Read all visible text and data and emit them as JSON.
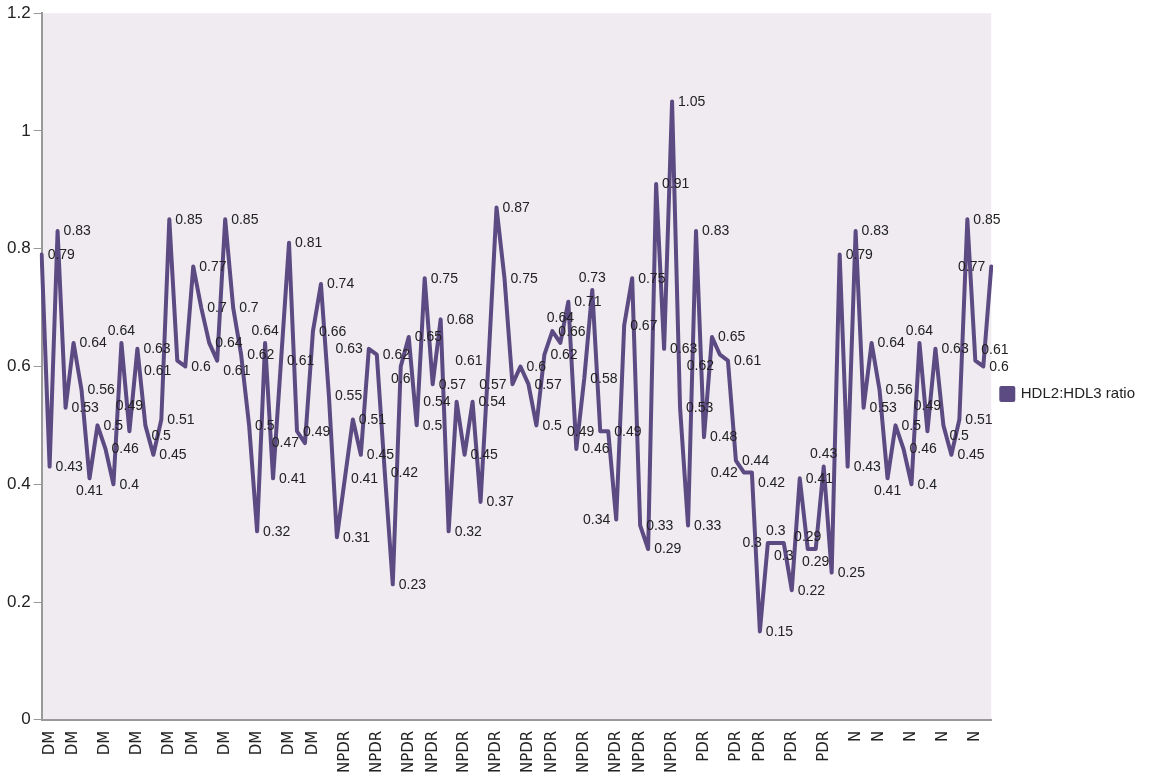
{
  "chart_data": {
    "type": "line",
    "categories": [
      null,
      "DM",
      null,
      null,
      "DM",
      null,
      null,
      null,
      "DM",
      null,
      null,
      null,
      "DM",
      null,
      null,
      null,
      "DM",
      null,
      null,
      "DM",
      null,
      null,
      null,
      "DM",
      null,
      null,
      null,
      "DM",
      null,
      null,
      null,
      "DM",
      null,
      null,
      "DM",
      null,
      null,
      null,
      "NPDR",
      null,
      null,
      null,
      "NPDR",
      null,
      null,
      null,
      "NPDR",
      null,
      null,
      "NPDR",
      null,
      null,
      null,
      "NPDR",
      null,
      null,
      null,
      "NPDR",
      null,
      null,
      null,
      "NPDR",
      null,
      null,
      "NPDR",
      null,
      null,
      null,
      "NPDR",
      null,
      null,
      null,
      "NPDR",
      null,
      null,
      "NPDR",
      null,
      null,
      null,
      "NPDR",
      null,
      null,
      null,
      "PDR",
      null,
      null,
      null,
      "PDR",
      null,
      null,
      "PDR",
      null,
      null,
      null,
      "PDR",
      null,
      null,
      null,
      "PDR",
      null,
      null,
      null,
      "N",
      null,
      null,
      "N",
      null,
      null,
      null,
      "N",
      null,
      null,
      null,
      "N",
      null,
      null,
      null,
      "N",
      null,
      null
    ],
    "series": [
      {
        "name": "HDL2:HDL3 ratio",
        "color": "#5c4a82",
        "values": [
          0.79,
          0.43,
          0.83,
          0.53,
          0.64,
          0.56,
          0.41,
          0.5,
          0.46,
          0.4,
          0.64,
          0.49,
          0.63,
          0.5,
          0.45,
          0.51,
          0.85,
          0.61,
          0.6,
          0.77,
          0.7,
          0.64,
          0.61,
          0.85,
          0.7,
          0.62,
          0.5,
          0.32,
          0.64,
          0.41,
          0.61,
          0.81,
          0.49,
          0.47,
          0.66,
          0.74,
          0.55,
          0.31,
          0.41,
          0.51,
          0.45,
          0.63,
          0.62,
          0.42,
          0.23,
          0.6,
          0.65,
          0.5,
          0.75,
          0.57,
          0.68,
          0.32,
          0.54,
          0.45,
          0.54,
          0.37,
          0.61,
          0.87,
          0.75,
          0.57,
          0.6,
          0.57,
          0.5,
          0.62,
          0.66,
          0.64,
          0.71,
          0.46,
          0.58,
          0.73,
          0.49,
          0.49,
          0.34,
          0.67,
          0.75,
          0.33,
          0.29,
          0.91,
          0.63,
          1.05,
          0.53,
          0.33,
          0.83,
          0.48,
          0.65,
          0.62,
          0.61,
          0.44,
          0.42,
          0.42,
          0.15,
          0.3,
          0.3,
          0.3,
          0.22,
          0.41,
          0.29,
          0.29,
          0.43,
          0.25,
          0.79,
          0.43,
          0.83,
          0.53,
          0.64,
          0.56,
          0.41,
          0.5,
          0.46,
          0.4,
          0.64,
          0.49,
          0.63,
          0.5,
          0.45,
          0.51,
          0.85,
          0.61,
          0.6,
          0.77
        ]
      }
    ],
    "ylim": [
      0,
      1.2
    ],
    "yticks": [
      0,
      0.2,
      0.4,
      0.6,
      0.8,
      1,
      1.2
    ],
    "grid": false,
    "legend": "right",
    "marker": "none",
    "line_style": "solid",
    "data_labels": true
  }
}
